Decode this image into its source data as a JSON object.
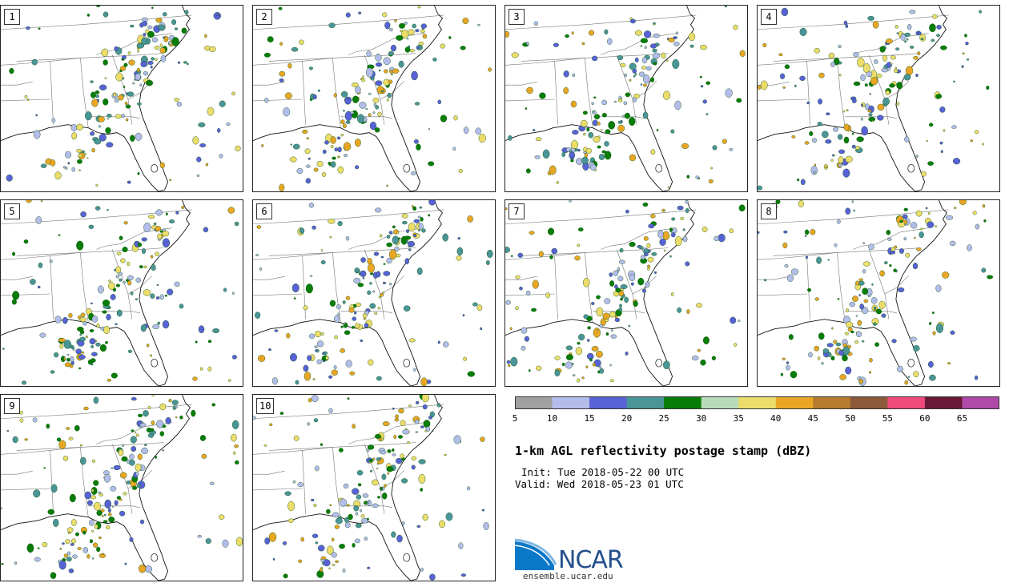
{
  "panels": [
    {
      "label": "1"
    },
    {
      "label": "2"
    },
    {
      "label": "3"
    },
    {
      "label": "4"
    },
    {
      "label": "5"
    },
    {
      "label": "6"
    },
    {
      "label": "7"
    },
    {
      "label": "8"
    },
    {
      "label": "9"
    },
    {
      "label": "10"
    }
  ],
  "colorbar": {
    "colors": [
      "#a0a0a0",
      "#b3bceb",
      "#5862d6",
      "#4a9597",
      "#077d07",
      "#b8dcb8",
      "#ecdc6a",
      "#e8a624",
      "#b77b2e",
      "#8c5a3a",
      "#ee4a7c",
      "#6a1838",
      "#b04aa8"
    ],
    "ticks": [
      "5",
      "10",
      "15",
      "20",
      "25",
      "30",
      "35",
      "40",
      "45",
      "50",
      "55",
      "60",
      "65"
    ]
  },
  "title": "1-km AGL reflectivity postage stamp (dBZ)",
  "init": "Init: Tue 2018-05-22 00 UTC",
  "valid": "Valid: Wed 2018-05-23 01 UTC",
  "logo_text": "NCAR",
  "site": "ensemble.ucar.edu"
}
